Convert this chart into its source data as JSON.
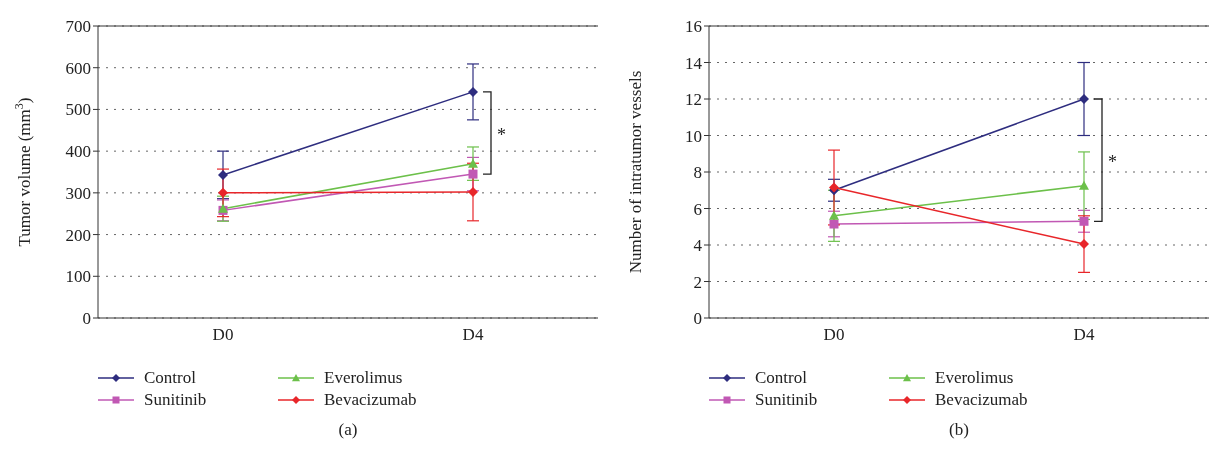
{
  "chart_data": [
    {
      "type": "line",
      "categories": [
        "D0",
        "D4"
      ],
      "ylabel": "Tumor volume (mm$^{3}$)",
      "ylim": [
        0,
        700
      ],
      "yticks": [
        0,
        100,
        200,
        300,
        400,
        500,
        600,
        700
      ],
      "grid": "y",
      "legend": "bottom",
      "line_style": "solid",
      "annotations": [
        "*",
        "(a)"
      ],
      "series": [
        {
          "name": "Control",
          "color": "#2e2d7f",
          "marker": "diamond",
          "values": [
            343,
            542
          ],
          "errors": [
            57,
            67
          ]
        },
        {
          "name": "Sunitinib",
          "color": "#c158b4",
          "marker": "square",
          "values": [
            258,
            345
          ],
          "errors": [
            25,
            40
          ]
        },
        {
          "name": "Everolimus",
          "color": "#6cc04a",
          "marker": "triangle",
          "values": [
            262,
            370
          ],
          "errors": [
            30,
            40
          ]
        },
        {
          "name": "Bevacizumab",
          "color": "#e8262a",
          "marker": "diamond",
          "values": [
            300,
            302
          ],
          "errors": [
            57,
            69
          ]
        }
      ]
    },
    {
      "type": "line",
      "categories": [
        "D0",
        "D4"
      ],
      "ylabel": "Number of intratumor vessels",
      "ylim": [
        0,
        16
      ],
      "yticks": [
        0,
        2,
        4,
        6,
        8,
        10,
        12,
        14,
        16
      ],
      "grid": "y",
      "legend": "bottom",
      "line_style": "solid",
      "annotations": [
        "*",
        "(b)"
      ],
      "series": [
        {
          "name": "Control",
          "color": "#2e2d7f",
          "marker": "diamond",
          "values": [
            7.0,
            12.0
          ],
          "errors": [
            0.6,
            2.0
          ]
        },
        {
          "name": "Sunitinib",
          "color": "#c158b4",
          "marker": "square",
          "values": [
            5.15,
            5.3
          ],
          "errors": [
            0.7,
            0.6
          ]
        },
        {
          "name": "Everolimus",
          "color": "#6cc04a",
          "marker": "triangle",
          "values": [
            5.6,
            7.25
          ],
          "errors": [
            1.4,
            1.85
          ]
        },
        {
          "name": "Bevacizumab",
          "color": "#e8262a",
          "marker": "diamond",
          "values": [
            7.15,
            4.05
          ],
          "errors": [
            2.05,
            1.55
          ]
        }
      ]
    }
  ]
}
